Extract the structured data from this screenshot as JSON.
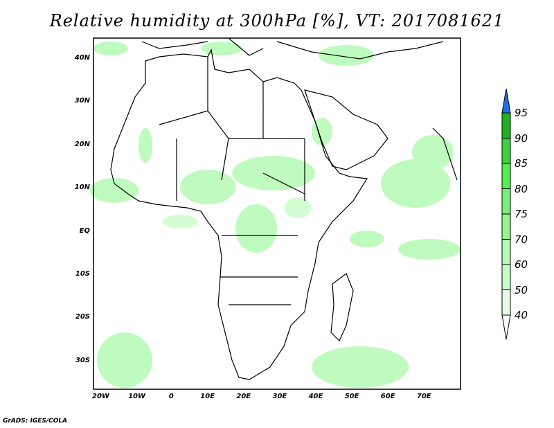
{
  "title": "Relative humidity at 300hPa [%], VT: 2017081621",
  "lat_labels": [
    "40N",
    "30N",
    "20N",
    "10N",
    "EQ",
    "10S",
    "20S",
    "30S"
  ],
  "lon_labels": [
    "20W",
    "10W",
    "0",
    "10E",
    "20E",
    "30E",
    "40E",
    "50E",
    "60E",
    "70E"
  ],
  "colorbar": {
    "levels": [
      "95",
      "90",
      "85",
      "80",
      "75",
      "70",
      "60",
      "50",
      "40"
    ],
    "colors": [
      "#1eb41e",
      "#3cd23c",
      "#50f050",
      "#78f078",
      "#96f58c",
      "#b4fab4",
      "#c8ffc8",
      "#e6ffe6"
    ],
    "over_color": "#1e6ee6",
    "under_color": "#ffffff"
  },
  "footer": "GrADS: IGES/COLA"
}
